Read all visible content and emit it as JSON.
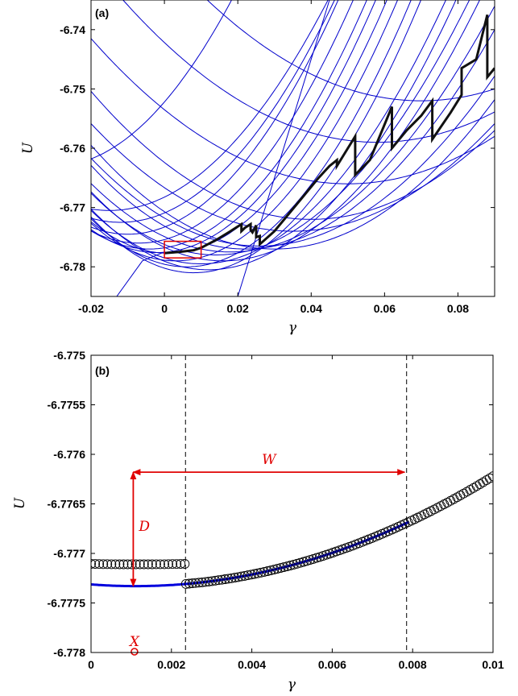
{
  "chart_data": [
    {
      "type": "line",
      "panel_label": "(a)",
      "xlabel": "γ",
      "ylabel": "U",
      "xlim": [
        -0.02,
        0.09
      ],
      "ylim": [
        -6.785,
        -6.735
      ],
      "xticks": [
        "-0.02",
        "0",
        "0.02",
        "0.04",
        "0.06",
        "0.08"
      ],
      "yticks": [
        "-6.74",
        "-6.75",
        "-6.76",
        "-6.77",
        "-6.78"
      ],
      "colors": {
        "branches": "#0000cc",
        "path": "#111111",
        "highlight_box": "#e00000"
      },
      "parabolas": [
        {
          "c": -0.015,
          "m": -6.7705,
          "k": 10
        },
        {
          "c": -0.012,
          "m": -6.7725,
          "k": 11
        },
        {
          "c": -0.01,
          "m": -6.7745,
          "k": 12
        },
        {
          "c": -0.007,
          "m": -6.776,
          "k": 12
        },
        {
          "c": -0.004,
          "m": -6.777,
          "k": 12
        },
        {
          "c": -0.002,
          "m": -6.7776,
          "k": 12
        },
        {
          "c": 0.001,
          "m": -6.7777,
          "k": 12
        },
        {
          "c": 0.003,
          "m": -6.779,
          "k": 12
        },
        {
          "c": 0.006,
          "m": -6.78,
          "k": 12
        },
        {
          "c": 0.008,
          "m": -6.781,
          "k": 12
        },
        {
          "c": 0.01,
          "m": -6.7795,
          "k": 10
        },
        {
          "c": 0.012,
          "m": -6.7805,
          "k": 10
        },
        {
          "c": 0.014,
          "m": -6.778,
          "k": 9
        },
        {
          "c": 0.016,
          "m": -6.779,
          "k": 9
        },
        {
          "c": 0.018,
          "m": -6.7775,
          "k": 8
        },
        {
          "c": 0.022,
          "m": -6.777,
          "k": 8
        },
        {
          "c": 0.026,
          "m": -6.7765,
          "k": 7
        },
        {
          "c": 0.03,
          "m": -6.777,
          "k": 7
        },
        {
          "c": 0.035,
          "m": -6.774,
          "k": 6
        },
        {
          "c": 0.04,
          "m": -6.772,
          "k": 6
        },
        {
          "c": 0.05,
          "m": -6.766,
          "k": 5
        },
        {
          "c": 0.058,
          "m": -6.759,
          "k": 5
        },
        {
          "c": -0.03,
          "m": -6.763,
          "k": 12
        },
        {
          "c": 0.07,
          "m": -6.752,
          "k": 5
        }
      ],
      "steep_lines": [
        {
          "x": [
            0.045,
            0.03,
            0.02,
            0.012
          ],
          "y": [
            -6.735,
            -6.765,
            -6.785,
            -6.8
          ]
        },
        {
          "x": [
            -0.013,
            -0.006,
            0.0
          ],
          "y": [
            -6.785,
            -6.779,
            -6.7775
          ]
        }
      ],
      "path": {
        "x": [
          0.0,
          0.004,
          0.008,
          0.01,
          0.014,
          0.018,
          0.021,
          0.021,
          0.022,
          0.0235,
          0.0235,
          0.024,
          0.025,
          0.025,
          0.026,
          0.026,
          0.03,
          0.034,
          0.038,
          0.042,
          0.045,
          0.047,
          0.047,
          0.05,
          0.052,
          0.052,
          0.056,
          0.062,
          0.062,
          0.066,
          0.07,
          0.073,
          0.073,
          0.078,
          0.081,
          0.081,
          0.085,
          0.088,
          0.088,
          0.09
        ],
        "y": [
          -6.7777,
          -6.7775,
          -6.7772,
          -6.7768,
          -6.7755,
          -6.774,
          -6.7728,
          -6.774,
          -6.7734,
          -6.7728,
          -6.7738,
          -6.7742,
          -6.773,
          -6.775,
          -6.7748,
          -6.7762,
          -6.774,
          -6.771,
          -6.768,
          -6.765,
          -6.763,
          -6.762,
          -6.763,
          -6.76,
          -6.758,
          -6.7645,
          -6.762,
          -6.753,
          -6.76,
          -6.757,
          -6.7545,
          -6.752,
          -6.7585,
          -6.754,
          -6.751,
          -6.7465,
          -6.745,
          -6.7375,
          -6.748,
          -6.7465
        ]
      },
      "highlight_box": {
        "x": [
          0.0,
          0.01
        ],
        "y": [
          -6.7785,
          -6.7757
        ]
      }
    },
    {
      "type": "scatter",
      "panel_label": "(b)",
      "xlabel": "γ",
      "ylabel": "U",
      "xlim": [
        0,
        0.01
      ],
      "ylim": [
        -6.778,
        -6.775
      ],
      "xticks": [
        "0",
        "0.002",
        "0.004",
        "0.006",
        "0.008",
        "0.01"
      ],
      "yticks": [
        "-6.775",
        "-6.7755",
        "-6.776",
        "-6.7765",
        "-6.777",
        "-6.7775",
        "-6.778"
      ],
      "colors": {
        "markers": "#000000",
        "fit": "#0000dd",
        "annotation": "#e00000"
      },
      "dashed_lines_x": [
        0.00235,
        0.00785
      ],
      "branch1": {
        "x0": 0.0,
        "x1": 0.00233,
        "n": 24,
        "center": 0.00115,
        "minimum": -6.77711,
        "curvature": 3.0
      },
      "branch2": {
        "x0": 0.00236,
        "x1": 0.01,
        "n": 95,
        "center": 0.00111,
        "minimum": -6.77733,
        "curvature": 14.03
      },
      "fit_curve": {
        "x0": 0.0,
        "x1": 0.0079,
        "center": 0.00111,
        "minimum": -6.77733,
        "curvature": 14.03
      },
      "annotations": {
        "W": {
          "label": "W",
          "x0": 0.00105,
          "x1": 0.0078,
          "y": -6.77618
        },
        "D": {
          "label": "D",
          "x": 0.00105,
          "y0": -6.77618,
          "y1": -6.77733
        },
        "X": {
          "label": "X",
          "x": 0.00108,
          "y": -6.778
        }
      }
    }
  ]
}
